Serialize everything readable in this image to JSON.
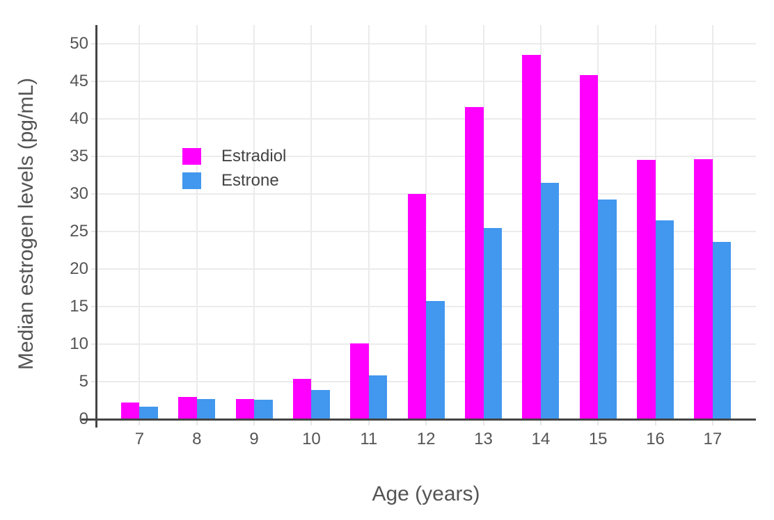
{
  "chart_data": {
    "type": "bar",
    "title": "",
    "categories": [
      7,
      8,
      9,
      10,
      11,
      12,
      13,
      14,
      15,
      16,
      17
    ],
    "series": [
      {
        "name": "Estradiol",
        "color": "#FF00FF",
        "values": [
          2.2,
          3.0,
          2.7,
          5.4,
          10.1,
          30.0,
          41.6,
          48.5,
          45.8,
          34.5,
          34.6
        ]
      },
      {
        "name": "Estrone",
        "color": "#4297EE",
        "values": [
          1.7,
          2.7,
          2.6,
          3.9,
          5.8,
          15.7,
          25.5,
          31.5,
          29.3,
          26.5,
          23.6
        ]
      }
    ],
    "xlabel": "Age (years)",
    "ylabel": "Median estrogen levels (pg/mL)",
    "ylim": [
      0,
      52
    ],
    "yticks": [
      0,
      5,
      10,
      15,
      20,
      25,
      30,
      35,
      40,
      45,
      50
    ],
    "grid": true,
    "legend_position": "inside-upper-left",
    "bar_mode": "grouped"
  },
  "colors": {
    "axis_line": "#444444",
    "gridline": "#ebebeb",
    "tick_label": "#545454",
    "axis_title": "#545454",
    "legend_text": "#444444",
    "background": "#ffffff"
  }
}
